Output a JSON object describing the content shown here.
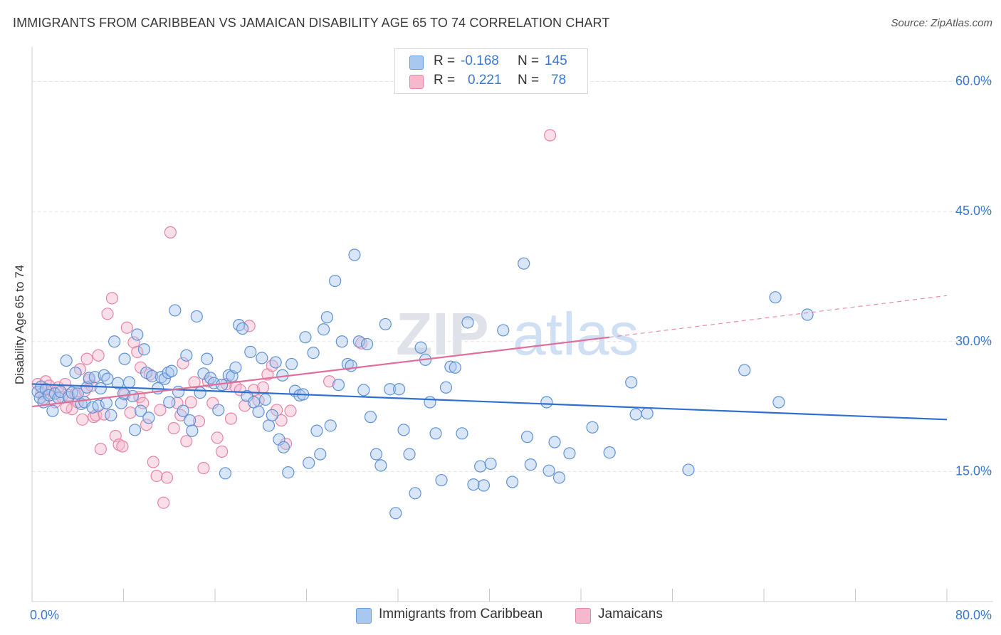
{
  "title": "IMMIGRANTS FROM CARIBBEAN VS JAMAICAN DISABILITY AGE 65 TO 74 CORRELATION CHART",
  "source": "Source: ZipAtlas.com",
  "watermark": {
    "zip": "ZIP",
    "atlas": "atlas"
  },
  "legend": {
    "rows": [
      {
        "r_label": "R =",
        "r_value": "-0.168",
        "n_label": "N =",
        "n_value": "145",
        "color": "#a9c8f0",
        "edge": "#6a9ad8"
      },
      {
        "r_label": "R =",
        "r_value": "0.221",
        "n_label": "N =",
        "n_value": "78",
        "color": "#f6b8cd",
        "edge": "#e684a6"
      }
    ]
  },
  "bottom_legend": [
    {
      "label": "Immigrants from Caribbean",
      "color": "#a9c8f0",
      "edge": "#6a9ad8"
    },
    {
      "label": "Jamaicans",
      "color": "#f6b8cd",
      "edge": "#e684a6"
    }
  ],
  "chart_data": {
    "type": "scatter",
    "ylabel": "Disability Age 65 to 74",
    "xlim": [
      0,
      80
    ],
    "ylim": [
      0,
      63
    ],
    "x_tick_labels": [
      {
        "value": 0,
        "label": "0.0%"
      },
      {
        "value": 80,
        "label": "80.0%"
      }
    ],
    "y_tick_labels": [
      {
        "value": 15,
        "label": "15.0%"
      },
      {
        "value": 30,
        "label": "30.0%"
      },
      {
        "value": 45,
        "label": "45.0%"
      },
      {
        "value": 60,
        "label": "60.0%"
      }
    ],
    "grid": true,
    "series": [
      {
        "name": "Immigrants from Caribbean",
        "color": "#a9c8f0",
        "edge": "#5f91d4",
        "line_color": "#2f6fd0",
        "trend": {
          "x0": 0,
          "y0": 25.1,
          "x1": 80,
          "y1": 21.0
        },
        "points": [
          [
            0.5,
            24.2
          ],
          [
            0.7,
            23.5
          ],
          [
            0.8,
            24.8
          ],
          [
            1.0,
            23.0
          ],
          [
            1.2,
            24.5
          ],
          [
            1.5,
            23.8
          ],
          [
            1.8,
            22.0
          ],
          [
            2.0,
            24.0
          ],
          [
            2.3,
            23.5
          ],
          [
            2.5,
            24.2
          ],
          [
            3.0,
            27.8
          ],
          [
            3.2,
            23.6
          ],
          [
            3.5,
            24.1
          ],
          [
            3.8,
            26.4
          ],
          [
            4.0,
            24.0
          ],
          [
            4.3,
            22.8
          ],
          [
            4.6,
            23.0
          ],
          [
            4.8,
            24.7
          ],
          [
            5.0,
            25.8
          ],
          [
            5.3,
            22.4
          ],
          [
            5.5,
            25.9
          ],
          [
            5.8,
            22.6
          ],
          [
            6.0,
            24.6
          ],
          [
            6.3,
            26.1
          ],
          [
            6.6,
            25.7
          ],
          [
            6.9,
            21.5
          ],
          [
            7.2,
            30.0
          ],
          [
            7.5,
            25.2
          ],
          [
            7.8,
            22.9
          ],
          [
            8.1,
            28.0
          ],
          [
            8.5,
            25.3
          ],
          [
            8.8,
            23.7
          ],
          [
            9.0,
            19.8
          ],
          [
            9.2,
            30.8
          ],
          [
            9.5,
            22.0
          ],
          [
            9.8,
            29.1
          ],
          [
            10.0,
            26.4
          ],
          [
            10.2,
            21.2
          ],
          [
            10.5,
            26.0
          ],
          [
            11.0,
            24.6
          ],
          [
            11.3,
            25.9
          ],
          [
            11.6,
            25.7
          ],
          [
            11.9,
            26.4
          ],
          [
            12.2,
            26.6
          ],
          [
            12.5,
            33.6
          ],
          [
            12.8,
            24.2
          ],
          [
            13.2,
            22.0
          ],
          [
            13.5,
            28.4
          ],
          [
            13.8,
            20.9
          ],
          [
            14.0,
            19.7
          ],
          [
            14.4,
            32.9
          ],
          [
            14.7,
            24.1
          ],
          [
            15.0,
            26.3
          ],
          [
            15.3,
            28.0
          ],
          [
            15.6,
            25.8
          ],
          [
            15.9,
            25.2
          ],
          [
            16.3,
            22.1
          ],
          [
            16.6,
            25.0
          ],
          [
            16.9,
            14.8
          ],
          [
            17.2,
            26.1
          ],
          [
            17.5,
            26.0
          ],
          [
            17.8,
            27.0
          ],
          [
            18.1,
            31.9
          ],
          [
            18.4,
            31.5
          ],
          [
            18.8,
            23.7
          ],
          [
            19.1,
            28.8
          ],
          [
            19.4,
            23.0
          ],
          [
            19.8,
            21.9
          ],
          [
            20.1,
            28.1
          ],
          [
            20.4,
            23.3
          ],
          [
            20.7,
            20.3
          ],
          [
            21.0,
            21.5
          ],
          [
            21.3,
            27.6
          ],
          [
            21.6,
            18.7
          ],
          [
            21.9,
            26.1
          ],
          [
            22.0,
            17.8
          ],
          [
            22.4,
            14.9
          ],
          [
            22.7,
            27.4
          ],
          [
            23.0,
            24.3
          ],
          [
            23.4,
            23.8
          ],
          [
            23.7,
            23.9
          ],
          [
            23.9,
            30.5
          ],
          [
            24.2,
            16.0
          ],
          [
            24.6,
            28.7
          ],
          [
            24.9,
            19.7
          ],
          [
            25.2,
            17.0
          ],
          [
            25.5,
            31.4
          ],
          [
            25.8,
            32.8
          ],
          [
            26.1,
            20.3
          ],
          [
            26.5,
            37.0
          ],
          [
            26.8,
            25.0
          ],
          [
            27.1,
            30.0
          ],
          [
            27.6,
            27.4
          ],
          [
            27.9,
            27.2
          ],
          [
            28.2,
            40.0
          ],
          [
            28.6,
            30.0
          ],
          [
            29.0,
            24.4
          ],
          [
            29.3,
            29.7
          ],
          [
            29.6,
            21.3
          ],
          [
            30.1,
            17.0
          ],
          [
            30.5,
            15.7
          ],
          [
            30.9,
            32.0
          ],
          [
            31.3,
            24.5
          ],
          [
            31.8,
            10.2
          ],
          [
            32.1,
            24.5
          ],
          [
            32.5,
            19.8
          ],
          [
            33.0,
            17.0
          ],
          [
            33.5,
            12.5
          ],
          [
            34.0,
            29.3
          ],
          [
            34.4,
            27.9
          ],
          [
            34.8,
            23.0
          ],
          [
            35.3,
            19.4
          ],
          [
            35.8,
            14.0
          ],
          [
            36.2,
            24.7
          ],
          [
            36.6,
            27.1
          ],
          [
            37.0,
            27.0
          ],
          [
            37.6,
            19.4
          ],
          [
            38.1,
            32.2
          ],
          [
            38.6,
            13.5
          ],
          [
            39.2,
            15.6
          ],
          [
            39.5,
            13.4
          ],
          [
            40.1,
            15.9
          ],
          [
            41.2,
            31.3
          ],
          [
            42.0,
            13.8
          ],
          [
            43.0,
            39.0
          ],
          [
            43.3,
            19.0
          ],
          [
            43.6,
            15.8
          ],
          [
            45.0,
            23.0
          ],
          [
            45.2,
            15.1
          ],
          [
            45.7,
            18.4
          ],
          [
            46.1,
            14.3
          ],
          [
            47.0,
            17.1
          ],
          [
            49.0,
            20.1
          ],
          [
            50.5,
            17.2
          ],
          [
            52.4,
            25.3
          ],
          [
            52.8,
            21.6
          ],
          [
            53.8,
            21.7
          ],
          [
            57.4,
            15.2
          ],
          [
            62.3,
            26.7
          ],
          [
            65.0,
            35.1
          ],
          [
            65.3,
            23.0
          ],
          [
            67.8,
            33.1
          ],
          [
            12.0,
            23.0
          ],
          [
            8.0,
            24.0
          ],
          [
            6.5,
            22.9
          ]
        ]
      },
      {
        "name": "Jamaicans",
        "color": "#f6b8cd",
        "edge": "#e684a6",
        "line_color": "#e0709a",
        "trend": {
          "x0": 0,
          "y0": 22.5,
          "x1": 50.5,
          "y1": 30.5
        },
        "trend_dashed": {
          "x0": 50.5,
          "y0": 30.5,
          "x1": 80,
          "y1": 35.3
        },
        "points": [
          [
            0.5,
            25.1
          ],
          [
            0.8,
            24.0
          ],
          [
            1.0,
            23.4
          ],
          [
            1.2,
            25.4
          ],
          [
            1.5,
            24.9
          ],
          [
            1.8,
            24.3
          ],
          [
            2.0,
            23.0
          ],
          [
            2.3,
            24.7
          ],
          [
            2.6,
            23.6
          ],
          [
            2.9,
            25.1
          ],
          [
            3.2,
            23.8
          ],
          [
            3.5,
            22.2
          ],
          [
            3.8,
            24.0
          ],
          [
            4.0,
            23.0
          ],
          [
            4.2,
            26.8
          ],
          [
            4.4,
            21.0
          ],
          [
            4.6,
            24.3
          ],
          [
            4.8,
            28.0
          ],
          [
            5.0,
            25.6
          ],
          [
            5.2,
            24.9
          ],
          [
            5.4,
            21.3
          ],
          [
            5.6,
            21.5
          ],
          [
            5.8,
            28.4
          ],
          [
            6.0,
            17.6
          ],
          [
            6.3,
            21.6
          ],
          [
            6.6,
            33.2
          ],
          [
            7.0,
            35.0
          ],
          [
            7.3,
            19.1
          ],
          [
            7.6,
            18.1
          ],
          [
            7.9,
            17.9
          ],
          [
            8.1,
            23.9
          ],
          [
            8.3,
            31.6
          ],
          [
            8.6,
            21.8
          ],
          [
            8.9,
            29.9
          ],
          [
            9.2,
            28.8
          ],
          [
            9.4,
            23.6
          ],
          [
            9.7,
            22.9
          ],
          [
            10.0,
            20.4
          ],
          [
            10.3,
            26.2
          ],
          [
            10.6,
            16.1
          ],
          [
            10.9,
            14.5
          ],
          [
            11.2,
            22.1
          ],
          [
            11.5,
            11.4
          ],
          [
            11.8,
            14.3
          ],
          [
            12.1,
            42.6
          ],
          [
            12.4,
            20.0
          ],
          [
            12.7,
            22.9
          ],
          [
            13.0,
            21.5
          ],
          [
            13.2,
            27.5
          ],
          [
            13.5,
            18.5
          ],
          [
            13.9,
            23.0
          ],
          [
            14.2,
            25.3
          ],
          [
            14.6,
            20.8
          ],
          [
            15.0,
            15.4
          ],
          [
            15.4,
            25.4
          ],
          [
            15.8,
            22.9
          ],
          [
            16.2,
            18.9
          ],
          [
            16.6,
            17.3
          ],
          [
            17.0,
            25.1
          ],
          [
            17.4,
            21.1
          ],
          [
            17.8,
            24.8
          ],
          [
            18.2,
            24.4
          ],
          [
            18.6,
            22.6
          ],
          [
            19.0,
            31.8
          ],
          [
            19.4,
            24.4
          ],
          [
            19.8,
            23.2
          ],
          [
            20.2,
            24.7
          ],
          [
            20.6,
            26.2
          ],
          [
            21.0,
            27.2
          ],
          [
            21.4,
            22.1
          ],
          [
            21.8,
            20.9
          ],
          [
            22.2,
            18.2
          ],
          [
            22.6,
            22.0
          ],
          [
            26.0,
            25.4
          ],
          [
            28.8,
            29.8
          ],
          [
            45.3,
            53.8
          ],
          [
            3.0,
            22.4
          ],
          [
            9.5,
            27.0
          ]
        ]
      }
    ]
  }
}
